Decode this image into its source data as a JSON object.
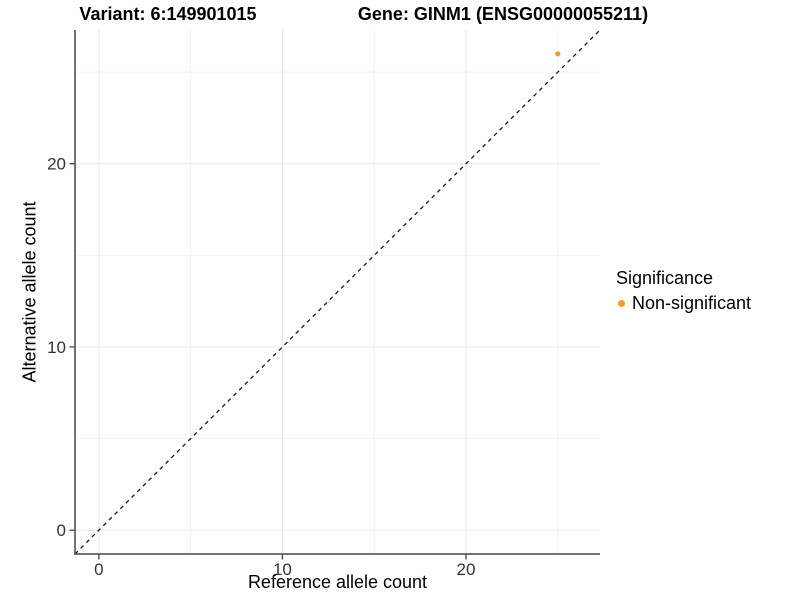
{
  "titles": {
    "variant": "Variant: 6:149901015",
    "gene": "Gene: GINM1 (ENSG00000055211)"
  },
  "chart_data": {
    "type": "scatter",
    "xlabel": "Reference allele count",
    "ylabel": "Alternative allele count",
    "xlim": [
      -1.3,
      27.3
    ],
    "ylim": [
      -1.3,
      27.3
    ],
    "x_ticks": [
      0,
      10,
      20
    ],
    "y_ticks": [
      0,
      10,
      20
    ],
    "x_minor_ticks": [
      5,
      15,
      25
    ],
    "y_minor_ticks": [
      5,
      15,
      25
    ],
    "grid": true,
    "points": [
      {
        "x": 25,
        "y": 26,
        "series": "Non-significant"
      }
    ],
    "reference_line": {
      "type": "identity",
      "slope": 1,
      "intercept": 0,
      "style": "dashed"
    },
    "legend": {
      "title": "Significance",
      "position": "right",
      "entries": [
        {
          "label": "Non-significant",
          "color": "#F89829",
          "marker": "circle"
        }
      ]
    }
  },
  "colors": {
    "point": "#F89829",
    "axis_line": "#464646",
    "tick_label": "#333333",
    "grid_major": "#E7E7E7",
    "grid_minor": "#F3F3F3",
    "reference_line": "#1A1A1A",
    "background": "#FFFFFF"
  }
}
